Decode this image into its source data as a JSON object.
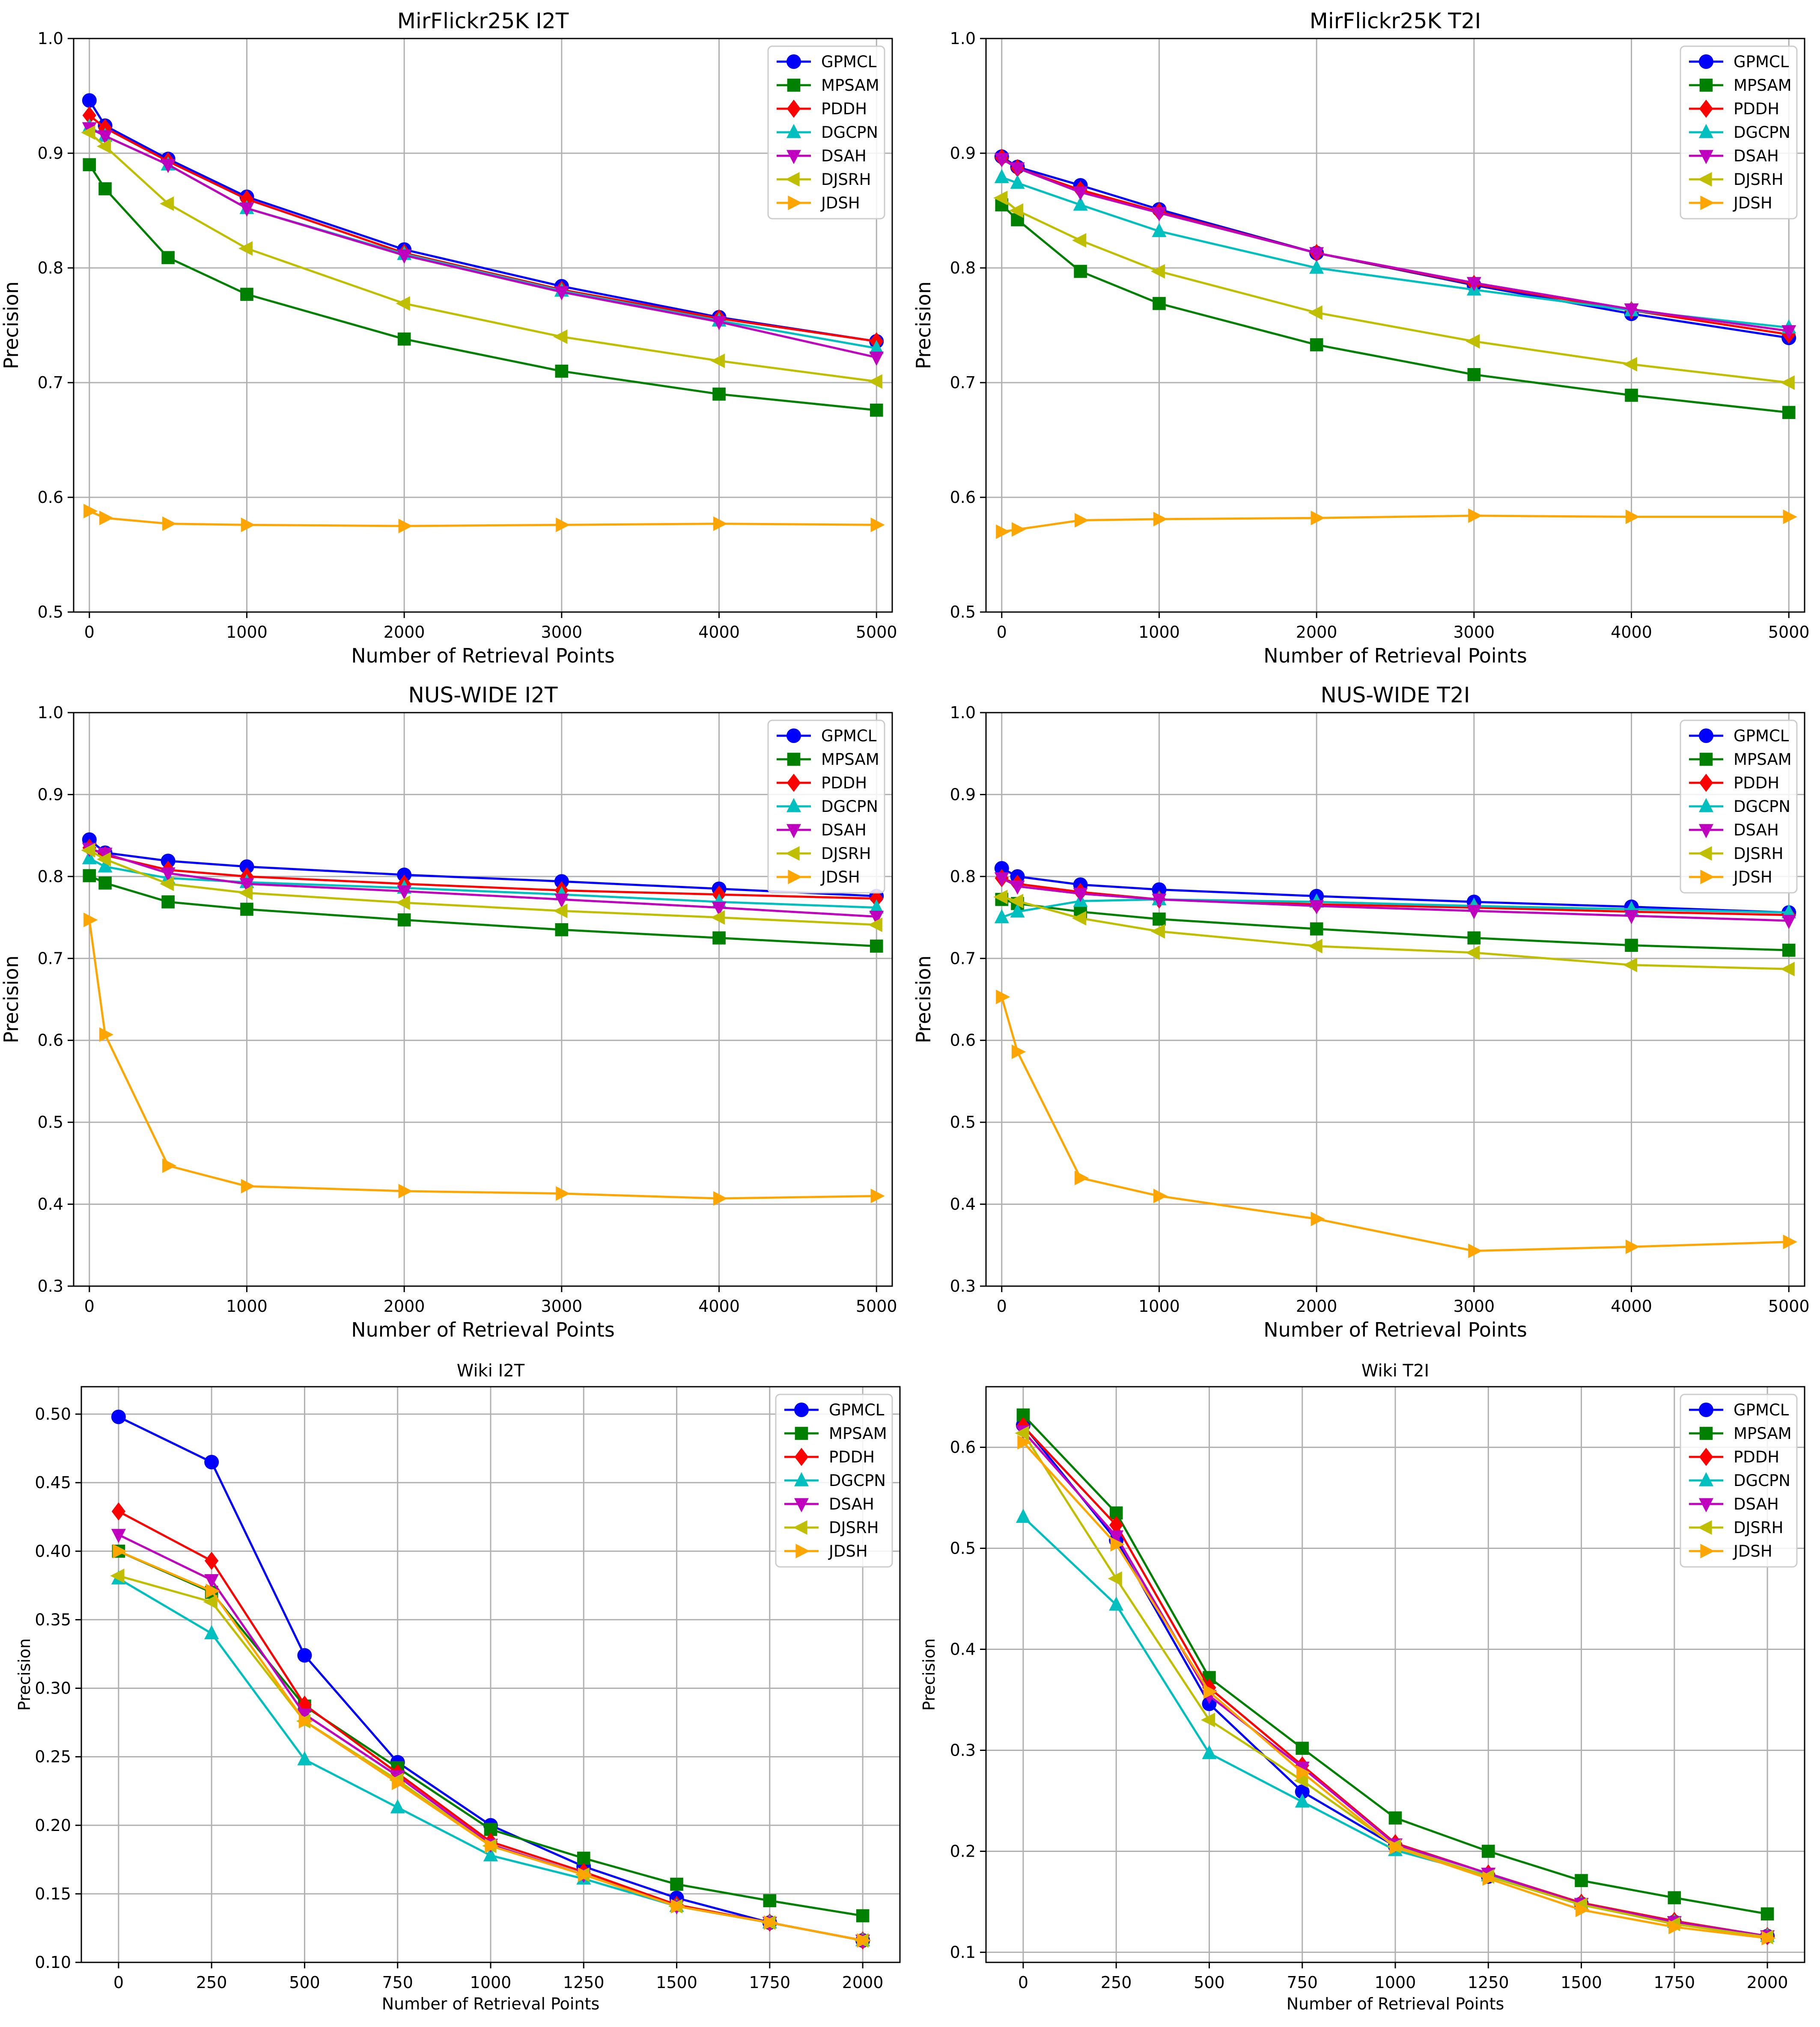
{
  "chart_data": [
    {
      "type": "line",
      "title": "MirFlickr25K I2T",
      "xlabel": "Number of Retrieval Points",
      "ylabel": "Precision",
      "xlim": [
        -100,
        5100
      ],
      "ylim": [
        0.5,
        1.0
      ],
      "xticks": [
        0,
        1000,
        2000,
        3000,
        4000,
        5000
      ],
      "xtick_labels": [
        "0",
        "1000",
        "2000",
        "3000",
        "4000",
        "5000"
      ],
      "yticks": [
        0.5,
        0.6,
        0.7,
        0.8,
        0.9,
        1.0
      ],
      "ytick_labels": [
        "0.5",
        "0.6",
        "0.7",
        "0.8",
        "0.9",
        "1.0"
      ],
      "grid": true,
      "legend_position": "top-right",
      "x": [
        0,
        100,
        500,
        1000,
        2000,
        3000,
        4000,
        5000
      ],
      "series": [
        {
          "name": "GPMCL",
          "color": "#0000ff",
          "marker": "circle",
          "values": [
            0.946,
            0.924,
            0.895,
            0.862,
            0.816,
            0.784,
            0.757,
            0.736
          ]
        },
        {
          "name": "MPSAM",
          "color": "#008000",
          "marker": "square",
          "values": [
            0.89,
            0.869,
            0.809,
            0.777,
            0.738,
            0.71,
            0.69,
            0.676
          ]
        },
        {
          "name": "PDDH",
          "color": "#ff0000",
          "marker": "diamond",
          "values": [
            0.933,
            0.922,
            0.893,
            0.86,
            0.813,
            0.781,
            0.756,
            0.736
          ]
        },
        {
          "name": "DGCPN",
          "color": "#00bfbf",
          "marker": "triangle-up",
          "values": [
            0.923,
            0.915,
            0.89,
            0.852,
            0.812,
            0.78,
            0.754,
            0.73
          ]
        },
        {
          "name": "DSAH",
          "color": "#bf00bf",
          "marker": "triangle-down",
          "values": [
            0.922,
            0.915,
            0.89,
            0.852,
            0.811,
            0.779,
            0.753,
            0.722
          ]
        },
        {
          "name": "DJSRH",
          "color": "#bfbf00",
          "marker": "triangle-left",
          "values": [
            0.918,
            0.906,
            0.856,
            0.817,
            0.769,
            0.74,
            0.719,
            0.701
          ]
        },
        {
          "name": "JDSH",
          "color": "#ffa500",
          "marker": "triangle-right",
          "values": [
            0.588,
            0.582,
            0.577,
            0.576,
            0.575,
            0.576,
            0.577,
            0.576
          ]
        }
      ]
    },
    {
      "type": "line",
      "title": "MirFlickr25K T2I",
      "xlabel": "Number of Retrieval Points",
      "ylabel": "Precision",
      "xlim": [
        -100,
        5100
      ],
      "ylim": [
        0.5,
        1.0
      ],
      "xticks": [
        0,
        1000,
        2000,
        3000,
        4000,
        5000
      ],
      "xtick_labels": [
        "0",
        "1000",
        "2000",
        "3000",
        "4000",
        "5000"
      ],
      "yticks": [
        0.5,
        0.6,
        0.7,
        0.8,
        0.9,
        1.0
      ],
      "ytick_labels": [
        "0.5",
        "0.6",
        "0.7",
        "0.8",
        "0.9",
        "1.0"
      ],
      "grid": true,
      "legend_position": "top-right",
      "x": [
        0,
        100,
        500,
        1000,
        2000,
        3000,
        4000,
        5000
      ],
      "series": [
        {
          "name": "GPMCL",
          "color": "#0000ff",
          "marker": "circle",
          "values": [
            0.897,
            0.888,
            0.872,
            0.851,
            0.813,
            0.785,
            0.76,
            0.739
          ]
        },
        {
          "name": "MPSAM",
          "color": "#008000",
          "marker": "square",
          "values": [
            0.855,
            0.842,
            0.797,
            0.769,
            0.733,
            0.707,
            0.689,
            0.674
          ]
        },
        {
          "name": "PDDH",
          "color": "#ff0000",
          "marker": "diamond",
          "values": [
            0.896,
            0.887,
            0.868,
            0.849,
            0.813,
            0.786,
            0.763,
            0.742
          ]
        },
        {
          "name": "DGCPN",
          "color": "#00bfbf",
          "marker": "triangle-up",
          "values": [
            0.879,
            0.874,
            0.855,
            0.832,
            0.8,
            0.781,
            0.763,
            0.748
          ]
        },
        {
          "name": "DSAH",
          "color": "#bf00bf",
          "marker": "triangle-down",
          "values": [
            0.895,
            0.887,
            0.866,
            0.848,
            0.813,
            0.787,
            0.764,
            0.745
          ]
        },
        {
          "name": "DJSRH",
          "color": "#bfbf00",
          "marker": "triangle-left",
          "values": [
            0.861,
            0.85,
            0.824,
            0.797,
            0.761,
            0.736,
            0.716,
            0.7
          ]
        },
        {
          "name": "JDSH",
          "color": "#ffa500",
          "marker": "triangle-right",
          "values": [
            0.57,
            0.572,
            0.58,
            0.581,
            0.582,
            0.584,
            0.583,
            0.583
          ]
        }
      ]
    },
    {
      "type": "line",
      "title": "NUS-WIDE I2T",
      "xlabel": "Number of Retrieval Points",
      "ylabel": "Precision",
      "xlim": [
        -100,
        5100
      ],
      "ylim": [
        0.3,
        1.0
      ],
      "xticks": [
        0,
        1000,
        2000,
        3000,
        4000,
        5000
      ],
      "xtick_labels": [
        "0",
        "1000",
        "2000",
        "3000",
        "4000",
        "5000"
      ],
      "yticks": [
        0.3,
        0.4,
        0.5,
        0.6,
        0.7,
        0.8,
        0.9,
        1.0
      ],
      "ytick_labels": [
        "0.3",
        "0.4",
        "0.5",
        "0.6",
        "0.7",
        "0.8",
        "0.9",
        "1.0"
      ],
      "grid": true,
      "legend_position": "top-right",
      "x": [
        0,
        100,
        500,
        1000,
        2000,
        3000,
        4000,
        5000
      ],
      "series": [
        {
          "name": "GPMCL",
          "color": "#0000ff",
          "marker": "circle",
          "values": [
            0.845,
            0.829,
            0.819,
            0.812,
            0.802,
            0.794,
            0.785,
            0.776
          ]
        },
        {
          "name": "MPSAM",
          "color": "#008000",
          "marker": "square",
          "values": [
            0.801,
            0.792,
            0.769,
            0.76,
            0.747,
            0.735,
            0.725,
            0.715
          ]
        },
        {
          "name": "PDDH",
          "color": "#ff0000",
          "marker": "diamond",
          "values": [
            0.835,
            0.826,
            0.808,
            0.8,
            0.791,
            0.783,
            0.778,
            0.773
          ]
        },
        {
          "name": "DGCPN",
          "color": "#00bfbf",
          "marker": "triangle-up",
          "values": [
            0.822,
            0.812,
            0.798,
            0.793,
            0.786,
            0.778,
            0.769,
            0.762
          ]
        },
        {
          "name": "DSAH",
          "color": "#bf00bf",
          "marker": "triangle-down",
          "values": [
            0.834,
            0.828,
            0.804,
            0.791,
            0.782,
            0.772,
            0.762,
            0.751
          ]
        },
        {
          "name": "DJSRH",
          "color": "#bfbf00",
          "marker": "triangle-left",
          "values": [
            0.832,
            0.821,
            0.791,
            0.78,
            0.768,
            0.758,
            0.75,
            0.741
          ]
        },
        {
          "name": "JDSH",
          "color": "#ffa500",
          "marker": "triangle-right",
          "values": [
            0.747,
            0.607,
            0.447,
            0.422,
            0.416,
            0.413,
            0.407,
            0.41
          ]
        }
      ]
    },
    {
      "type": "line",
      "title": "NUS-WIDE T2I",
      "xlabel": "Number of Retrieval Points",
      "ylabel": "Precision",
      "xlim": [
        -100,
        5100
      ],
      "ylim": [
        0.3,
        1.0
      ],
      "xticks": [
        0,
        1000,
        2000,
        3000,
        4000,
        5000
      ],
      "xtick_labels": [
        "0",
        "1000",
        "2000",
        "3000",
        "4000",
        "5000"
      ],
      "yticks": [
        0.3,
        0.4,
        0.5,
        0.6,
        0.7,
        0.8,
        0.9,
        1.0
      ],
      "ytick_labels": [
        "0.3",
        "0.4",
        "0.5",
        "0.6",
        "0.7",
        "0.8",
        "0.9",
        "1.0"
      ],
      "grid": true,
      "legend_position": "top-right",
      "x": [
        0,
        100,
        500,
        1000,
        2000,
        3000,
        4000,
        5000
      ],
      "series": [
        {
          "name": "GPMCL",
          "color": "#0000ff",
          "marker": "circle",
          "values": [
            0.81,
            0.8,
            0.79,
            0.784,
            0.776,
            0.769,
            0.763,
            0.756
          ]
        },
        {
          "name": "MPSAM",
          "color": "#008000",
          "marker": "square",
          "values": [
            0.772,
            0.767,
            0.757,
            0.748,
            0.736,
            0.725,
            0.716,
            0.71
          ]
        },
        {
          "name": "PDDH",
          "color": "#ff0000",
          "marker": "diamond",
          "values": [
            0.798,
            0.791,
            0.781,
            0.772,
            0.766,
            0.762,
            0.757,
            0.753
          ]
        },
        {
          "name": "DGCPN",
          "color": "#00bfbf",
          "marker": "triangle-up",
          "values": [
            0.75,
            0.757,
            0.77,
            0.772,
            0.769,
            0.764,
            0.76,
            0.756
          ]
        },
        {
          "name": "DSAH",
          "color": "#bf00bf",
          "marker": "triangle-down",
          "values": [
            0.798,
            0.788,
            0.779,
            0.772,
            0.764,
            0.758,
            0.752,
            0.746
          ]
        },
        {
          "name": "DJSRH",
          "color": "#bfbf00",
          "marker": "triangle-left",
          "values": [
            0.775,
            0.77,
            0.749,
            0.733,
            0.715,
            0.707,
            0.692,
            0.687
          ]
        },
        {
          "name": "JDSH",
          "color": "#ffa500",
          "marker": "triangle-right",
          "values": [
            0.653,
            0.586,
            0.432,
            0.41,
            0.382,
            0.343,
            0.348,
            0.354
          ]
        }
      ]
    },
    {
      "type": "line",
      "title": "Wiki I2T",
      "xlabel": "Number of Retrieval Points",
      "ylabel": "Precision",
      "xlim": [
        -100,
        2100
      ],
      "ylim": [
        0.1,
        0.52
      ],
      "xticks": [
        0,
        250,
        500,
        750,
        1000,
        1250,
        1500,
        1750,
        2000
      ],
      "xtick_labels": [
        "0",
        "250",
        "500",
        "750",
        "1000",
        "1250",
        "1500",
        "1750",
        "2000"
      ],
      "yticks": [
        0.1,
        0.15,
        0.2,
        0.25,
        0.3,
        0.35,
        0.4,
        0.45,
        0.5
      ],
      "ytick_labels": [
        "0.10",
        "0.15",
        "0.20",
        "0.25",
        "0.30",
        "0.35",
        "0.40",
        "0.45",
        "0.50"
      ],
      "grid": true,
      "legend_position": "top-right",
      "x": [
        0,
        250,
        500,
        750,
        1000,
        1250,
        1500,
        1750,
        2000
      ],
      "series": [
        {
          "name": "GPMCL",
          "color": "#0000ff",
          "marker": "circle",
          "values": [
            0.498,
            0.465,
            0.324,
            0.246,
            0.2,
            0.17,
            0.147,
            0.129,
            0.116
          ]
        },
        {
          "name": "MPSAM",
          "color": "#008000",
          "marker": "square",
          "values": [
            0.4,
            0.37,
            0.287,
            0.242,
            0.197,
            0.176,
            0.157,
            0.145,
            0.134
          ]
        },
        {
          "name": "PDDH",
          "color": "#ff0000",
          "marker": "diamond",
          "values": [
            0.429,
            0.393,
            0.288,
            0.238,
            0.188,
            0.166,
            0.142,
            0.129,
            0.116
          ]
        },
        {
          "name": "DGCPN",
          "color": "#00bfbf",
          "marker": "triangle-up",
          "values": [
            0.38,
            0.34,
            0.248,
            0.213,
            0.178,
            0.161,
            0.141,
            0.129,
            0.116
          ]
        },
        {
          "name": "DSAH",
          "color": "#bf00bf",
          "marker": "triangle-down",
          "values": [
            0.412,
            0.379,
            0.281,
            0.236,
            0.186,
            0.164,
            0.141,
            0.129,
            0.116
          ]
        },
        {
          "name": "DJSRH",
          "color": "#bfbf00",
          "marker": "triangle-left",
          "values": [
            0.382,
            0.363,
            0.276,
            0.233,
            0.185,
            0.164,
            0.141,
            0.129,
            0.116
          ]
        },
        {
          "name": "JDSH",
          "color": "#ffa500",
          "marker": "triangle-right",
          "values": [
            0.4,
            0.371,
            0.276,
            0.231,
            0.185,
            0.164,
            0.141,
            0.129,
            0.116
          ]
        }
      ]
    },
    {
      "type": "line",
      "title": "Wiki T2I",
      "xlabel": "Number of Retrieval Points",
      "ylabel": "Precision",
      "xlim": [
        -100,
        2100
      ],
      "ylim": [
        0.09,
        0.66
      ],
      "xticks": [
        0,
        250,
        500,
        750,
        1000,
        1250,
        1500,
        1750,
        2000
      ],
      "xtick_labels": [
        "0",
        "250",
        "500",
        "750",
        "1000",
        "1250",
        "1500",
        "1750",
        "2000"
      ],
      "yticks": [
        0.1,
        0.2,
        0.3,
        0.4,
        0.5,
        0.6
      ],
      "ytick_labels": [
        "0.1",
        "0.2",
        "0.3",
        "0.4",
        "0.5",
        "0.6"
      ],
      "grid": true,
      "legend_position": "top-right",
      "x": [
        0,
        250,
        500,
        750,
        1000,
        1250,
        1500,
        1750,
        2000
      ],
      "series": [
        {
          "name": "GPMCL",
          "color": "#0000ff",
          "marker": "circle",
          "values": [
            0.622,
            0.508,
            0.346,
            0.259,
            0.205,
            0.175,
            0.148,
            0.13,
            0.116
          ]
        },
        {
          "name": "MPSAM",
          "color": "#008000",
          "marker": "square",
          "values": [
            0.632,
            0.535,
            0.372,
            0.302,
            0.233,
            0.2,
            0.171,
            0.154,
            0.138
          ]
        },
        {
          "name": "PDDH",
          "color": "#ff0000",
          "marker": "diamond",
          "values": [
            0.621,
            0.523,
            0.362,
            0.285,
            0.208,
            0.178,
            0.149,
            0.131,
            0.116
          ]
        },
        {
          "name": "DGCPN",
          "color": "#00bfbf",
          "marker": "triangle-up",
          "values": [
            0.531,
            0.444,
            0.297,
            0.249,
            0.201,
            0.176,
            0.148,
            0.13,
            0.116
          ]
        },
        {
          "name": "DSAH",
          "color": "#bf00bf",
          "marker": "triangle-down",
          "values": [
            0.616,
            0.512,
            0.354,
            0.283,
            0.207,
            0.178,
            0.148,
            0.13,
            0.116
          ]
        },
        {
          "name": "DJSRH",
          "color": "#bfbf00",
          "marker": "triangle-left",
          "values": [
            0.614,
            0.47,
            0.33,
            0.27,
            0.205,
            0.175,
            0.147,
            0.128,
            0.115
          ]
        },
        {
          "name": "JDSH",
          "color": "#ffa500",
          "marker": "triangle-right",
          "values": [
            0.605,
            0.504,
            0.358,
            0.278,
            0.204,
            0.173,
            0.142,
            0.125,
            0.114
          ]
        }
      ]
    }
  ]
}
